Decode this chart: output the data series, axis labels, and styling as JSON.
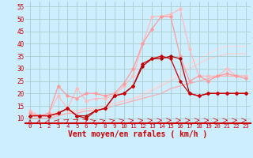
{
  "background_color": "#cceeff",
  "grid_color": "#aacccc",
  "xlabel": "Vent moyen/en rafales ( km/h )",
  "xlabel_color": "#cc0000",
  "xlabel_fontsize": 7,
  "tick_color": "#cc0000",
  "xlim": [
    -0.5,
    23.5
  ],
  "ylim": [
    8,
    57
  ],
  "yticks": [
    10,
    15,
    20,
    25,
    30,
    35,
    40,
    45,
    50,
    55
  ],
  "xticks": [
    0,
    1,
    2,
    3,
    4,
    5,
    6,
    7,
    8,
    9,
    10,
    11,
    12,
    13,
    14,
    15,
    16,
    17,
    18,
    19,
    20,
    21,
    22,
    23
  ],
  "lines": [
    {
      "x": [
        0,
        1,
        2,
        3,
        4,
        5,
        6,
        7,
        8,
        9,
        10,
        11,
        12,
        13,
        14,
        15,
        16,
        17,
        18,
        19,
        20,
        21,
        22,
        23
      ],
      "y": [
        11,
        11,
        11,
        12,
        14,
        11,
        10,
        13,
        14,
        19,
        20,
        23,
        32,
        34,
        35,
        34,
        25,
        20,
        19,
        20,
        20,
        20,
        20,
        20
      ],
      "color": "#cc0000",
      "lw": 0.9,
      "marker": "D",
      "markersize": 1.8,
      "zorder": 5
    },
    {
      "x": [
        0,
        1,
        2,
        3,
        4,
        5,
        6,
        7,
        8,
        9,
        10,
        11,
        12,
        13,
        14,
        15,
        16,
        17,
        18,
        19,
        20,
        21,
        22,
        23
      ],
      "y": [
        11,
        11,
        11,
        12,
        14,
        11,
        11,
        13,
        14,
        19,
        20,
        23,
        31,
        34,
        34,
        35,
        34,
        20,
        19,
        20,
        20,
        20,
        20,
        20
      ],
      "color": "#aa0000",
      "lw": 0.9,
      "marker": "D",
      "markersize": 1.8,
      "zorder": 4
    },
    {
      "x": [
        0,
        1,
        2,
        3,
        4,
        5,
        6,
        7,
        8,
        9,
        10,
        11,
        12,
        13,
        14,
        15,
        16,
        17,
        18,
        19,
        20,
        21,
        22,
        23
      ],
      "y": [
        12,
        11,
        12,
        23,
        19,
        18,
        20,
        20,
        19,
        20,
        24,
        30,
        40,
        46,
        51,
        51,
        35,
        25,
        27,
        25,
        27,
        28,
        27,
        26
      ],
      "color": "#ff9999",
      "lw": 0.9,
      "marker": "D",
      "markersize": 1.8,
      "zorder": 3
    },
    {
      "x": [
        0,
        1,
        2,
        3,
        4,
        5,
        6,
        7,
        8,
        9,
        10,
        11,
        12,
        13,
        14,
        15,
        16,
        17,
        18,
        19,
        20,
        21,
        22,
        23
      ],
      "y": [
        13,
        11,
        12,
        19,
        14,
        22,
        17,
        18,
        18,
        19,
        23,
        27,
        40,
        51,
        51,
        52,
        54,
        38,
        27,
        27,
        27,
        30,
        27,
        27
      ],
      "color": "#ffbbbb",
      "lw": 0.9,
      "marker": "D",
      "markersize": 1.8,
      "zorder": 2
    },
    {
      "x": [
        0,
        1,
        2,
        3,
        4,
        5,
        6,
        7,
        8,
        9,
        10,
        11,
        12,
        13,
        14,
        15,
        16,
        17,
        18,
        19,
        20,
        21,
        22,
        23
      ],
      "y": [
        10,
        10,
        10,
        11,
        12,
        12,
        13,
        13,
        14,
        15,
        16,
        17,
        18,
        19,
        20,
        22,
        23,
        24,
        25,
        26,
        27,
        27,
        27,
        27
      ],
      "color": "#ffaaaa",
      "lw": 0.9,
      "marker": null,
      "markersize": 0,
      "zorder": 1
    },
    {
      "x": [
        0,
        1,
        2,
        3,
        4,
        5,
        6,
        7,
        8,
        9,
        10,
        11,
        12,
        13,
        14,
        15,
        16,
        17,
        18,
        19,
        20,
        21,
        22,
        23
      ],
      "y": [
        10,
        10,
        10,
        11,
        12,
        13,
        13,
        14,
        15,
        16,
        17,
        18,
        20,
        22,
        24,
        26,
        29,
        32,
        34,
        36,
        38,
        39,
        39,
        39
      ],
      "color": "#ffdddd",
      "lw": 0.9,
      "marker": null,
      "markersize": 0,
      "zorder": 0
    },
    {
      "x": [
        0,
        1,
        2,
        3,
        4,
        5,
        6,
        7,
        8,
        9,
        10,
        11,
        12,
        13,
        14,
        15,
        16,
        17,
        18,
        19,
        20,
        21,
        22,
        23
      ],
      "y": [
        11,
        11,
        11,
        13,
        13,
        13,
        14,
        14,
        15,
        16,
        17,
        18,
        19,
        21,
        23,
        25,
        27,
        30,
        32,
        34,
        35,
        36,
        36,
        36
      ],
      "color": "#ffcccc",
      "lw": 0.9,
      "marker": null,
      "markersize": 0,
      "zorder": 0
    }
  ],
  "arrow_angles": [
    0,
    5,
    10,
    20,
    30,
    35,
    40,
    45,
    50,
    55,
    60,
    65,
    70,
    75,
    80,
    82,
    84,
    85,
    85,
    85,
    85,
    85,
    85,
    85
  ]
}
